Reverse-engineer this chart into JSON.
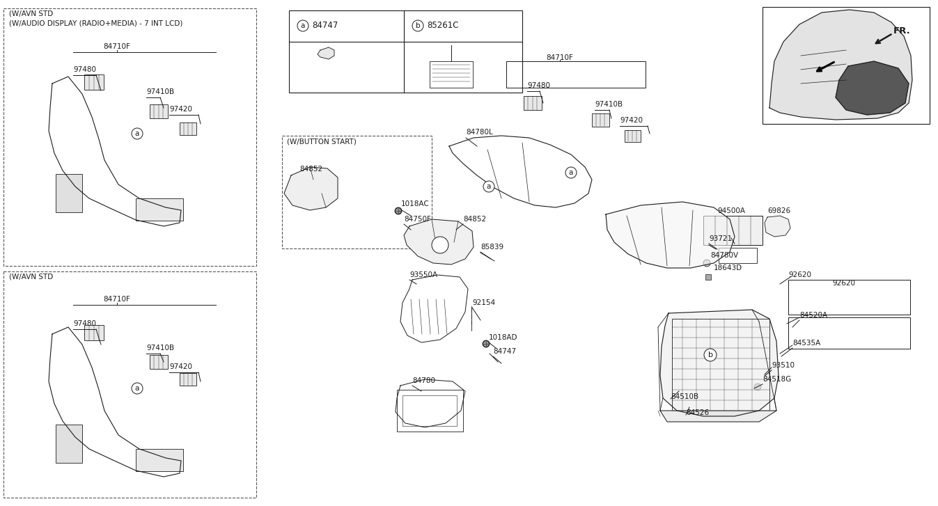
{
  "bg_color": "#ffffff",
  "line_color": "#1a1a1a",
  "text_color": "#1a1a1a",
  "figsize": [
    13.47,
    7.27
  ],
  "dpi": 100,
  "xlim": [
    0,
    1347
  ],
  "ylim": [
    727,
    0
  ],
  "fs_small": 7.5,
  "fs_med": 8.5,
  "fs_large": 9.5,
  "fs_bold": 10
}
